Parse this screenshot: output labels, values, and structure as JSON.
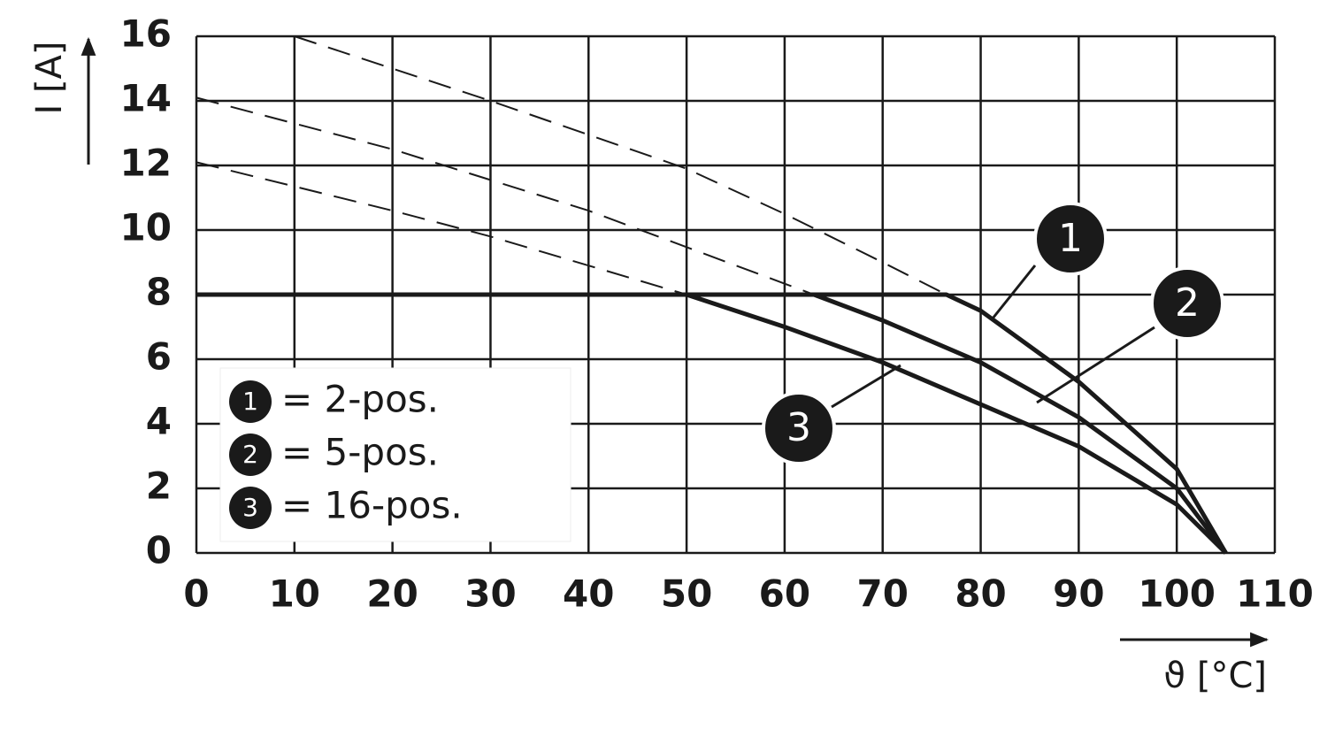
{
  "chart_data": {
    "type": "line",
    "x_label": "ϑ [°C]",
    "y_label": "I [A]",
    "xlim": [
      0,
      110
    ],
    "xticks": [
      0,
      10,
      20,
      30,
      40,
      50,
      60,
      70,
      80,
      90,
      100,
      110
    ],
    "ylim": [
      0,
      16
    ],
    "yticks": [
      0,
      2,
      4,
      6,
      8,
      10,
      12,
      14,
      16
    ],
    "grid": true,
    "legend": "lower left",
    "color": "#1a1a1a",
    "series": [
      {
        "name": "= 2-pos.",
        "marker_label": "1",
        "x": [
          0,
          76.5,
          80,
          90,
          100,
          105
        ],
        "values": [
          8,
          8,
          7.5,
          5.3,
          2.6,
          0
        ],
        "dashed_x": [
          10,
          30,
          50,
          60,
          70,
          76.5
        ],
        "dashed_values": [
          16,
          14,
          11.9,
          10.5,
          9.0,
          8
        ]
      },
      {
        "name": "= 5-pos.",
        "marker_label": "2",
        "x": [
          0,
          63,
          70,
          80,
          90,
          100,
          105
        ],
        "values": [
          8,
          8,
          7.2,
          5.9,
          4.2,
          2.0,
          0
        ],
        "dashed_x": [
          0,
          20,
          40,
          63
        ],
        "dashed_values": [
          14.1,
          12.5,
          10.6,
          8
        ]
      },
      {
        "name": "= 16-pos.",
        "marker_label": "3",
        "x": [
          0,
          50,
          60,
          70,
          80,
          90,
          100,
          105
        ],
        "values": [
          8,
          8,
          7.0,
          5.9,
          4.6,
          3.3,
          1.5,
          0
        ],
        "dashed_x": [
          0,
          20,
          30,
          50
        ],
        "dashed_values": [
          12.1,
          10.6,
          9.8,
          8
        ]
      }
    ],
    "annotations": [
      "1",
      "2",
      "3"
    ]
  }
}
